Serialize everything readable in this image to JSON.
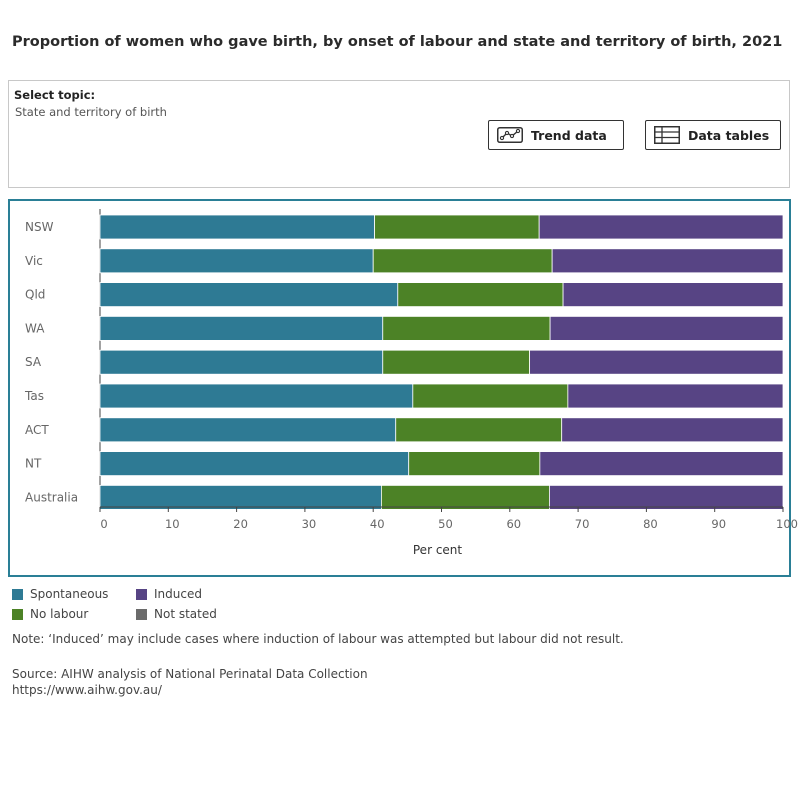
{
  "title": "Proportion of women who gave birth, by onset of labour and state and territory of birth, 2021",
  "topic": {
    "label": "Select topic:",
    "value": "State and territory of birth"
  },
  "buttons": {
    "trend": "Trend data",
    "tables": "Data tables"
  },
  "colors": {
    "spontaneous": "#2e7a94",
    "no_labour": "#4c8226",
    "induced": "#574484",
    "not_stated": "#6b6b6b",
    "border": "#2a7f96"
  },
  "chart_data": {
    "type": "bar",
    "orientation": "horizontal",
    "stacked": true,
    "categories": [
      "NSW",
      "Vic",
      "Qld",
      "WA",
      "SA",
      "Tas",
      "ACT",
      "NT",
      "Australia"
    ],
    "series": [
      {
        "name": "Spontaneous",
        "color": "#2e7a94",
        "values": [
          40.2,
          40.0,
          43.6,
          41.4,
          41.4,
          45.8,
          43.3,
          45.2,
          41.2
        ]
      },
      {
        "name": "No labour",
        "color": "#4c8226",
        "values": [
          24.1,
          26.2,
          24.2,
          24.5,
          21.5,
          22.7,
          24.3,
          19.2,
          24.6
        ]
      },
      {
        "name": "Induced",
        "color": "#574484",
        "values": [
          35.7,
          33.8,
          32.2,
          34.1,
          37.1,
          31.5,
          32.4,
          35.6,
          34.2
        ]
      },
      {
        "name": "Not stated",
        "color": "#6b6b6b",
        "values": [
          0,
          0,
          0,
          0,
          0,
          0,
          0,
          0,
          0
        ]
      }
    ],
    "xlabel": "Per cent",
    "xlim": [
      0,
      100
    ],
    "xticks": [
      0,
      10,
      20,
      30,
      40,
      50,
      60,
      70,
      80,
      90,
      100
    ],
    "legend_position": "bottom-left"
  },
  "legend": [
    {
      "label": "Spontaneous",
      "color": "#2e7a94"
    },
    {
      "label": "Induced",
      "color": "#574484"
    },
    {
      "label": "No labour",
      "color": "#4c8226"
    },
    {
      "label": "Not stated",
      "color": "#6b6b6b"
    }
  ],
  "note": "Note: ‘Induced’ may include cases where induction of labour was attempted but labour did not result.",
  "source": {
    "line1": "Source: AIHW analysis of National Perinatal Data Collection",
    "line2": "https://www.aihw.gov.au/"
  }
}
